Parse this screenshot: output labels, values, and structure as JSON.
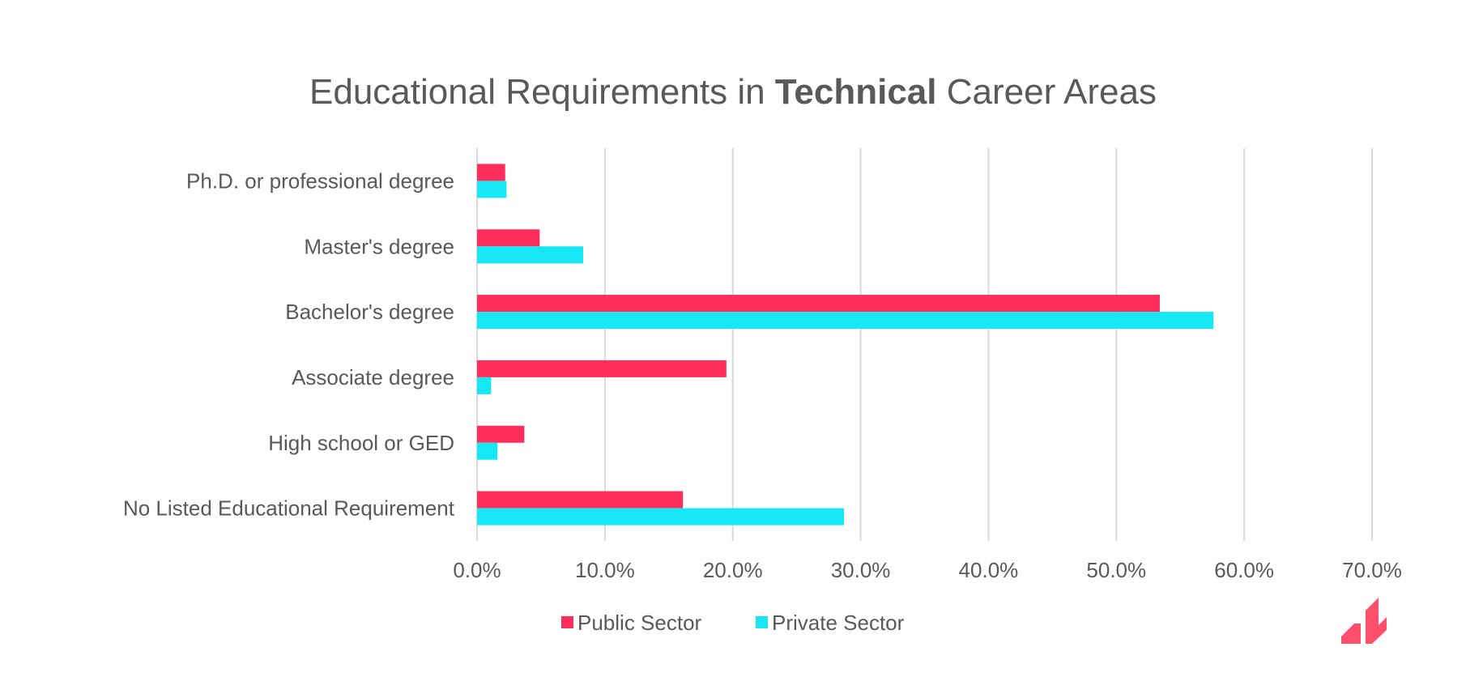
{
  "colors": {
    "public": "#ff2d5a",
    "private": "#17e6f5",
    "grid": "#d9d9d9",
    "text": "#595959",
    "logo": "#ff4f6b"
  },
  "chart_data": {
    "type": "bar",
    "orientation": "horizontal",
    "title": {
      "prefix": "Educational Requirements in ",
      "bold": "Technical",
      "suffix": " Career Areas"
    },
    "categories": [
      "Ph.D. or professional degree",
      "Master's degree",
      "Bachelor's degree",
      "Associate degree",
      "High school or GED",
      "No Listed Educational Requirement"
    ],
    "series": [
      {
        "name": "Public Sector",
        "values": [
          2.2,
          4.9,
          53.4,
          19.5,
          3.7,
          16.1
        ]
      },
      {
        "name": "Private Sector",
        "values": [
          2.3,
          8.3,
          57.6,
          1.1,
          1.6,
          28.7
        ]
      }
    ],
    "xticks": [
      "0.0%",
      "10.0%",
      "20.0%",
      "30.0%",
      "40.0%",
      "50.0%",
      "60.0%",
      "70.0%"
    ],
    "xlim": [
      0,
      70
    ],
    "grid": true,
    "legend_position": "bottom"
  },
  "logo": {
    "name": "brand-logo-icon"
  }
}
